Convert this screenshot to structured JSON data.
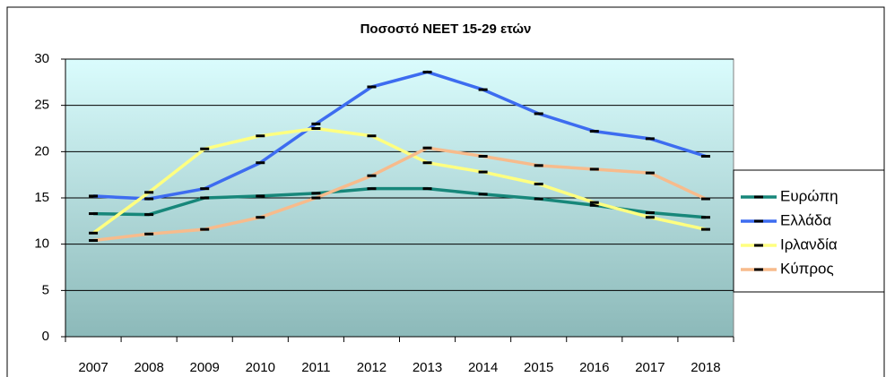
{
  "chart_data": {
    "type": "line",
    "title": "Ποσοστό NEET 15-29 ετών",
    "categories": [
      "2007",
      "2008",
      "2009",
      "2010",
      "2011",
      "2012",
      "2013",
      "2014",
      "2015",
      "2016",
      "2017",
      "2018"
    ],
    "series": [
      {
        "name": "Ευρώπη",
        "color": "#17877a",
        "values": [
          13.3,
          13.2,
          15.0,
          15.2,
          15.5,
          16.0,
          16.0,
          15.4,
          14.9,
          14.2,
          13.4,
          12.9
        ]
      },
      {
        "name": "Ελλάδα",
        "color": "#3d6cf0",
        "values": [
          15.2,
          14.9,
          16.0,
          18.8,
          23.0,
          27.0,
          28.6,
          26.7,
          24.1,
          22.2,
          21.4,
          19.5
        ]
      },
      {
        "name": "Ιρλανδία",
        "color": "#ffff80",
        "values": [
          11.2,
          15.6,
          20.3,
          21.7,
          22.5,
          21.7,
          18.8,
          17.8,
          16.5,
          14.5,
          12.9,
          11.6
        ]
      },
      {
        "name": "Κύπρος",
        "color": "#f7bb8c",
        "values": [
          10.4,
          11.1,
          11.6,
          12.9,
          15.0,
          17.4,
          20.4,
          19.5,
          18.5,
          18.1,
          17.7,
          14.9
        ]
      }
    ],
    "ylim": [
      0,
      30
    ],
    "yticks": [
      0,
      5,
      10,
      15,
      20,
      25,
      30
    ],
    "grid": true,
    "legend": "right"
  }
}
